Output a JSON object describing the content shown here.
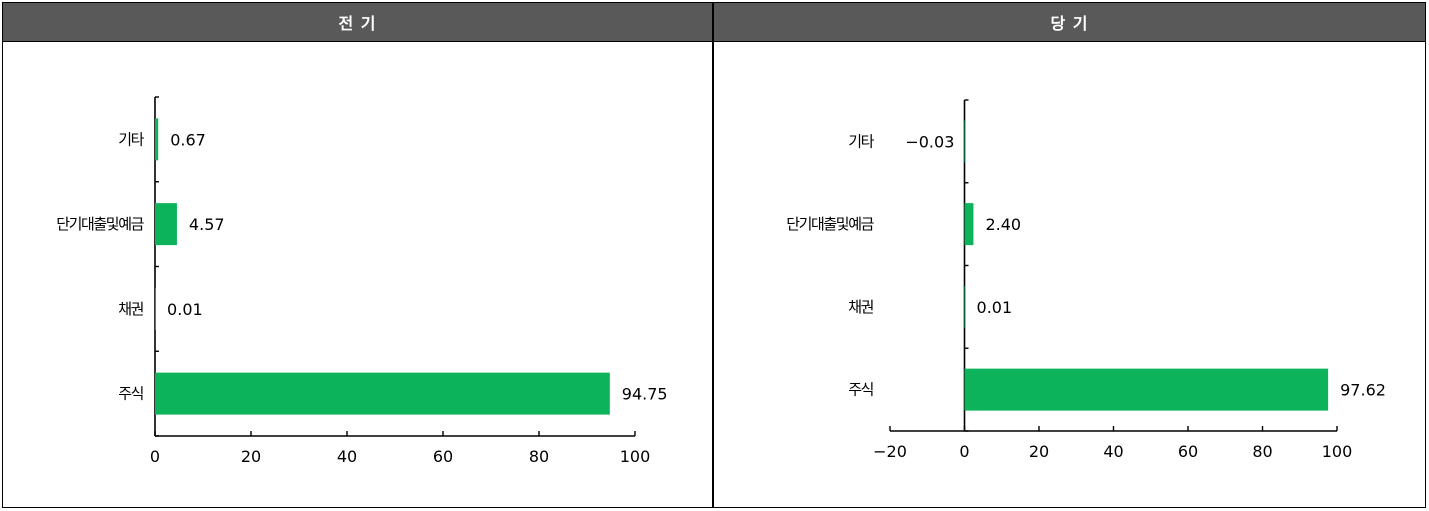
{
  "colors": {
    "header_bg": "#595959",
    "bar": "#0db35b"
  },
  "chart_data": [
    {
      "type": "bar",
      "orientation": "horizontal",
      "title": "전 기",
      "categories": [
        "기타",
        "단기대출및예금",
        "채권",
        "주식"
      ],
      "values": [
        0.67,
        4.57,
        0.01,
        94.75
      ],
      "value_labels": [
        "0.67",
        "4.57",
        "0.01",
        "94.75"
      ],
      "xlim": [
        0,
        100
      ],
      "xticks": [
        0,
        20,
        40,
        60,
        80,
        100
      ],
      "grid": false,
      "xlabel": "",
      "ylabel": ""
    },
    {
      "type": "bar",
      "orientation": "horizontal",
      "title": "당 기",
      "categories": [
        "기타",
        "단기대출및예금",
        "채권",
        "주식"
      ],
      "values": [
        -0.03,
        2.4,
        0.01,
        97.62
      ],
      "value_labels": [
        "-0.03",
        "2.40",
        "0.01",
        "97.62"
      ],
      "xlim": [
        -20,
        100
      ],
      "xticks": [
        -20,
        0,
        20,
        40,
        60,
        80,
        100
      ],
      "grid": false,
      "xlabel": "",
      "ylabel": ""
    }
  ]
}
